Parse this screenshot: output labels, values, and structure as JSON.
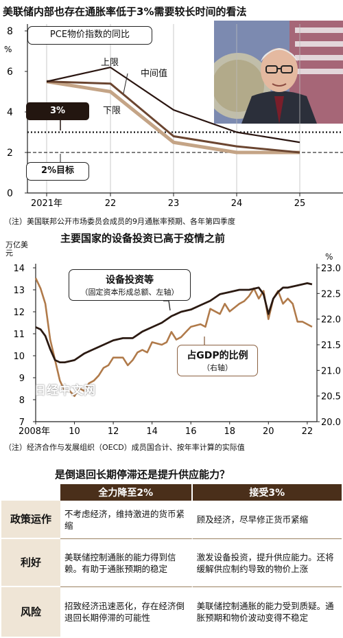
{
  "colors": {
    "upper": "#2a1510",
    "middle": "#6b4530",
    "lower": "#c4a486",
    "invest": "#2b1a12",
    "gdp": "#b07a4a",
    "header_bg": "#4a2f1a",
    "rowhead_bg": "#efe5d6"
  },
  "headline1": "美联储内部也存在通胀率低于3%需要较长时间的看法",
  "headline2": "主要国家的设备投资已高于疫情之前",
  "headline3": "是倒退回长期停滞还是提升供应能力？",
  "note1": "（注）美国联邦公开市场委员会成员的9月通胀率预期、各年第四季度",
  "note2": "（注）经济合作与发展组织（OECD）成员国合计、按年率计算的实际值",
  "watermark": "日经中文网",
  "chart_data": [
    {
      "type": "line",
      "title": "",
      "ylabel": "%",
      "label_box": "PCE物价指数的同比",
      "x": [
        "2021年",
        "22",
        "23",
        "24",
        "25"
      ],
      "ylim": [
        0,
        8
      ],
      "yticks": [
        "0",
        "2",
        "4",
        "6",
        "8"
      ],
      "series": [
        {
          "name": "上限",
          "values": [
            5.5,
            6.2,
            4.1,
            3.0,
            2.5
          ]
        },
        {
          "name": "中间值",
          "values": [
            5.5,
            5.4,
            2.8,
            2.3,
            2.0
          ]
        },
        {
          "name": "下限",
          "values": [
            5.5,
            5.0,
            2.5,
            2.0,
            2.0
          ]
        }
      ],
      "reference_lines": [
        {
          "label": "3%",
          "value": 3.0,
          "style": "dotted"
        },
        {
          "label": "2%目标",
          "value": 2.0,
          "style": "dashed"
        }
      ]
    },
    {
      "type": "line",
      "title": "",
      "y_left_label": "万亿美元",
      "y_right_label": "%",
      "x_ticks": [
        "2008年",
        "10",
        "12",
        "14",
        "16",
        "18",
        "20",
        "22"
      ],
      "x_range": [
        2008,
        2022.5
      ],
      "ylim_left": [
        7,
        14
      ],
      "ylim_right": [
        20.0,
        23.0
      ],
      "yticks_left": [
        "7",
        "8",
        "9",
        "10",
        "11",
        "12",
        "13",
        "14"
      ],
      "yticks_right": [
        "20.0",
        "20.5",
        "21.0",
        "21.5",
        "22.0",
        "22.5",
        "23.0"
      ],
      "series": [
        {
          "name": "设备投资等",
          "sub": "（固定资本形成总额、左轴）",
          "axis": "left",
          "x": [
            2008.0,
            2008.25,
            2008.5,
            2008.75,
            2009.0,
            2009.25,
            2009.5,
            2009.75,
            2010.0,
            2010.5,
            2011.0,
            2011.5,
            2012.0,
            2012.5,
            2013.0,
            2013.5,
            2014.0,
            2014.5,
            2015.0,
            2015.5,
            2016.0,
            2016.5,
            2017.0,
            2017.5,
            2018.0,
            2018.5,
            2019.0,
            2019.5,
            2019.75,
            2020.0,
            2020.25,
            2020.5,
            2020.75,
            2021.0,
            2021.5,
            2022.0,
            2022.25
          ],
          "values": [
            11.3,
            11.2,
            10.9,
            10.3,
            9.8,
            9.7,
            9.7,
            9.75,
            9.8,
            10.1,
            10.3,
            10.5,
            10.7,
            10.8,
            10.8,
            11.1,
            11.3,
            11.5,
            11.8,
            12.0,
            12.1,
            12.3,
            12.5,
            12.8,
            12.9,
            13.0,
            13.0,
            13.1,
            12.8,
            11.9,
            12.6,
            12.9,
            13.1,
            13.1,
            13.2,
            13.3,
            13.25
          ]
        },
        {
          "name": "占GDP的比例",
          "sub": "（右轴）",
          "axis": "right",
          "x": [
            2008.0,
            2008.25,
            2008.5,
            2008.75,
            2009.0,
            2009.25,
            2009.5,
            2009.75,
            2010.0,
            2010.25,
            2010.5,
            2010.75,
            2011.0,
            2011.25,
            2011.5,
            2011.75,
            2012.0,
            2012.5,
            2012.75,
            2013.0,
            2013.25,
            2013.5,
            2013.75,
            2014.0,
            2014.5,
            2014.75,
            2015.0,
            2015.25,
            2015.5,
            2015.75,
            2016.0,
            2016.5,
            2016.75,
            2017.0,
            2017.5,
            2017.75,
            2018.0,
            2018.5,
            2018.75,
            2019.0,
            2019.25,
            2019.5,
            2019.75,
            2020.0,
            2020.25,
            2020.5,
            2020.75,
            2021.0,
            2021.25,
            2021.5,
            2021.75,
            2022.0,
            2022.25
          ],
          "values": [
            22.8,
            22.6,
            22.3,
            21.6,
            21.2,
            20.8,
            20.6,
            20.6,
            20.5,
            20.65,
            20.6,
            20.75,
            20.8,
            20.9,
            21.05,
            21.1,
            21.25,
            21.25,
            21.1,
            21.2,
            21.35,
            21.4,
            21.35,
            21.55,
            21.5,
            21.55,
            21.75,
            21.6,
            21.65,
            21.75,
            21.85,
            21.9,
            21.85,
            22.2,
            22.1,
            22.3,
            22.15,
            22.3,
            22.35,
            22.45,
            22.6,
            22.4,
            22.55,
            22.0,
            22.4,
            22.55,
            22.3,
            22.4,
            22.3,
            21.95,
            21.95,
            21.9,
            21.85
          ]
        }
      ]
    }
  ],
  "table": {
    "headers": [
      "全力降至2%",
      "接受3%"
    ],
    "rows": [
      {
        "label": "政策运作",
        "a": "不考虑经济，维持激进的货币紧缩",
        "b": "顾及经济，尽早修正货币紧缩"
      },
      {
        "label": "利好",
        "a": "美联储控制通胀的能力得到信赖。有助于通胀预期的稳定",
        "b": "激发设备投资，提升供应能力。还将缓解供应制约导致的物价上涨"
      },
      {
        "label": "风险",
        "a": "招致经济迅速恶化，存在经济倒退回长期停滞的可能性",
        "b": "美联储控制通胀的能力受到质疑。通胀预期和物价波动变得不稳定"
      }
    ]
  }
}
